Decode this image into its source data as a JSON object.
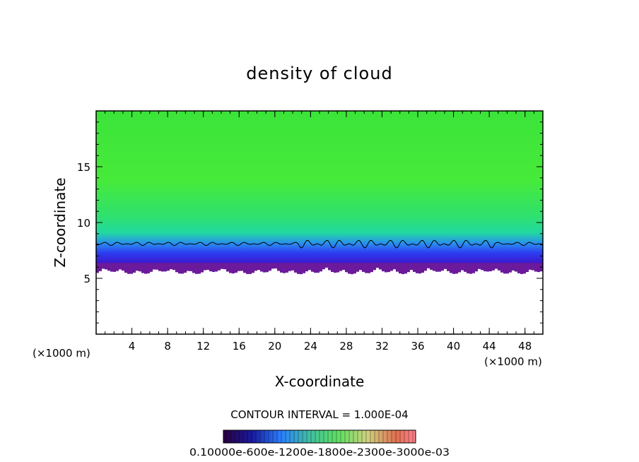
{
  "chart_data": {
    "type": "heatmap",
    "title": "density of cloud",
    "xlabel": "X-coordinate",
    "ylabel": "Z-coordinate",
    "x_unit_left": "(×1000 m)",
    "x_unit_right": "(×1000 m)",
    "xlim": [
      0,
      50
    ],
    "ylim": [
      0,
      20
    ],
    "x_ticks": [
      4,
      8,
      12,
      16,
      20,
      24,
      28,
      32,
      36,
      40,
      44,
      48
    ],
    "y_ticks": [
      5,
      10,
      15
    ],
    "x_minor_step": 1,
    "y_minor_step": 1,
    "contour_interval_label": "CONTOUR INTERVAL = 1.000E-04",
    "cloud_base_z": 6.0,
    "contour_z": 8.1,
    "colorbar_labels_text": "0.10000e-600e-1200e-1800e-2300e-3000e-03",
    "colors": {
      "field_top": "#3ee63e",
      "field_mid": "#22d880",
      "field_blue": "#1a3cff",
      "field_base": "#6a1a9a"
    }
  }
}
